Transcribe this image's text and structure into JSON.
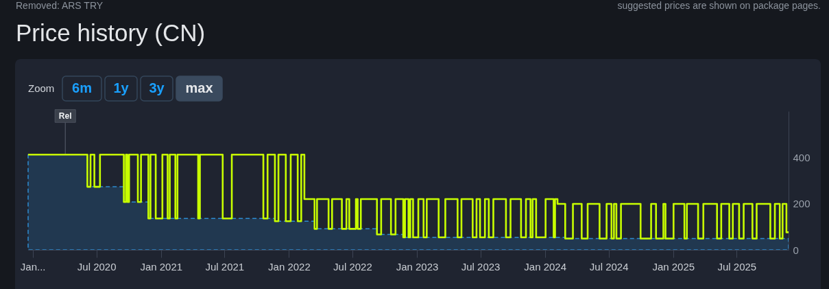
{
  "chart_data": {
    "type": "step",
    "title": "Price history (CN)",
    "xlim": [
      "2019-12-19",
      "2025-11-26"
    ],
    "xticks": [
      {
        "value": "2020-01-01",
        "label": "Jan..."
      },
      {
        "value": "2020-07-01",
        "label": "Jul 2020"
      },
      {
        "value": "2021-01-01",
        "label": "Jan 2021"
      },
      {
        "value": "2021-07-01",
        "label": "Jul 2021"
      },
      {
        "value": "2022-01-01",
        "label": "Jan 2022"
      },
      {
        "value": "2022-07-01",
        "label": "Jul 2022"
      },
      {
        "value": "2023-01-01",
        "label": "Jan 2023"
      },
      {
        "value": "2023-07-01",
        "label": "Jul 2023"
      },
      {
        "value": "2024-01-01",
        "label": "Jan 2024"
      },
      {
        "value": "2024-07-01",
        "label": "Jul 2024"
      },
      {
        "value": "2025-01-01",
        "label": "Jan 2025"
      },
      {
        "value": "2025-07-01",
        "label": "Jul 2025"
      }
    ],
    "ylim": [
      0,
      600
    ],
    "yticks": [
      0,
      200,
      400
    ],
    "series": [
      {
        "type": "area",
        "color": "#2e8bd0",
        "line_style": "dashed",
        "x": [
          "2019-12-19",
          "2020-06-05",
          "2020-09-17",
          "2020-11-26",
          "2021-11-22",
          "2022-03-15",
          "2022-09-09",
          "2022-11-23",
          "2024-02-28",
          "2025-11-26"
        ],
        "values": [
          412,
          273,
          207,
          136,
          124,
          91,
          67,
          54,
          49,
          49
        ]
      },
      {
        "type": "step",
        "color": "#c8ff00",
        "x": [
          "2019-12-19",
          "2020-06-05",
          "2020-06-14",
          "2020-06-25",
          "2020-07-11",
          "2020-09-17",
          "2020-09-23",
          "2020-09-27",
          "2020-10-02",
          "2020-10-27",
          "2020-11-05",
          "2020-11-26",
          "2020-12-02",
          "2020-12-17",
          "2021-01-05",
          "2021-01-20",
          "2021-01-26",
          "2021-02-11",
          "2021-02-17",
          "2021-04-17",
          "2021-04-22",
          "2021-06-26",
          "2021-07-22",
          "2021-10-20",
          "2021-11-01",
          "2021-11-22",
          "2021-12-02",
          "2021-12-23",
          "2022-01-06",
          "2022-01-26",
          "2022-02-05",
          "2022-02-14",
          "2022-03-15",
          "2022-03-22",
          "2022-04-24",
          "2022-05-04",
          "2022-06-01",
          "2022-06-14",
          "2022-06-22",
          "2022-07-11",
          "2022-07-16",
          "2022-07-25",
          "2022-09-09",
          "2022-09-21",
          "2022-10-19",
          "2022-11-01",
          "2022-11-23",
          "2022-11-28",
          "2022-12-08",
          "2022-12-13",
          "2022-12-21",
          "2023-01-05",
          "2023-01-20",
          "2023-01-29",
          "2023-03-04",
          "2023-03-23",
          "2023-04-27",
          "2023-05-08",
          "2023-06-09",
          "2023-06-20",
          "2023-06-30",
          "2023-07-14",
          "2023-07-25",
          "2023-08-07",
          "2023-09-12",
          "2023-09-25",
          "2023-10-25",
          "2023-11-08",
          "2023-11-21",
          "2023-11-27",
          "2023-12-07",
          "2024-01-03",
          "2024-01-26",
          "2024-01-30",
          "2024-02-06",
          "2024-02-28",
          "2024-03-21",
          "2024-04-15",
          "2024-05-02",
          "2024-06-05",
          "2024-06-25",
          "2024-07-09",
          "2024-07-16",
          "2024-07-23",
          "2024-08-05",
          "2024-09-30",
          "2024-10-30",
          "2024-11-13",
          "2024-12-04",
          "2024-12-10",
          "2025-01-02",
          "2025-02-02",
          "2025-02-09",
          "2025-03-13",
          "2025-03-28",
          "2025-05-06",
          "2025-05-18",
          "2025-06-10",
          "2025-06-20",
          "2025-07-08",
          "2025-07-21",
          "2025-08-15",
          "2025-08-27",
          "2025-10-05",
          "2025-10-18",
          "2025-11-01",
          "2025-11-09",
          "2025-11-20",
          "2025-11-26"
        ],
        "values": [
          412,
          273,
          412,
          273,
          412,
          207,
          412,
          207,
          412,
          207,
          412,
          136,
          412,
          136,
          412,
          136,
          412,
          136,
          412,
          136,
          412,
          136,
          412,
          136,
          412,
          124,
          412,
          124,
          412,
          124,
          412,
          220,
          91,
          220,
          91,
          220,
          91,
          220,
          91,
          220,
          91,
          220,
          67,
          220,
          67,
          220,
          54,
          220,
          54,
          220,
          54,
          220,
          54,
          220,
          54,
          220,
          54,
          220,
          54,
          220,
          54,
          220,
          54,
          220,
          54,
          220,
          54,
          220,
          54,
          220,
          54,
          220,
          54,
          220,
          199,
          49,
          199,
          49,
          199,
          49,
          199,
          49,
          199,
          49,
          199,
          49,
          199,
          49,
          199,
          49,
          199,
          49,
          199,
          49,
          199,
          49,
          199,
          49,
          199,
          49,
          199,
          49,
          199,
          49,
          199,
          49,
          199,
          76,
          76
        ]
      }
    ],
    "ref_lines": [
      {
        "axis": "x",
        "value": "2020-04-03",
        "label": "Rel"
      }
    ],
    "annotations": [
      "Removed: ARS TRY",
      "suggested prices are shown on package pages.",
      "Zoom",
      "6m",
      "1y",
      "3y",
      "max"
    ]
  }
}
